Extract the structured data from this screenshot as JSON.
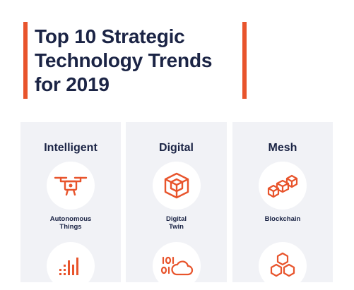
{
  "title": {
    "line1": "Top 10 Strategic",
    "line2": "Technology Trends",
    "line3": "for 2019"
  },
  "accent_color": "#e8542c",
  "text_color": "#1b2445",
  "panel_color": "#f1f2f6",
  "columns": [
    {
      "heading": "Intelligent",
      "items": [
        {
          "icon": "drone-icon",
          "label_line1": "Autonomous",
          "label_line2": "Things"
        },
        {
          "icon": "signal-bars-icon"
        }
      ]
    },
    {
      "heading": "Digital",
      "items": [
        {
          "icon": "cube-icon",
          "label_line1": "Digital",
          "label_line2": "Twin"
        },
        {
          "icon": "binary-cloud-icon"
        }
      ]
    },
    {
      "heading": "Mesh",
      "items": [
        {
          "icon": "blockchain-icon",
          "label_line1": "Blockchain"
        },
        {
          "icon": "hexagons-icon"
        }
      ]
    }
  ]
}
